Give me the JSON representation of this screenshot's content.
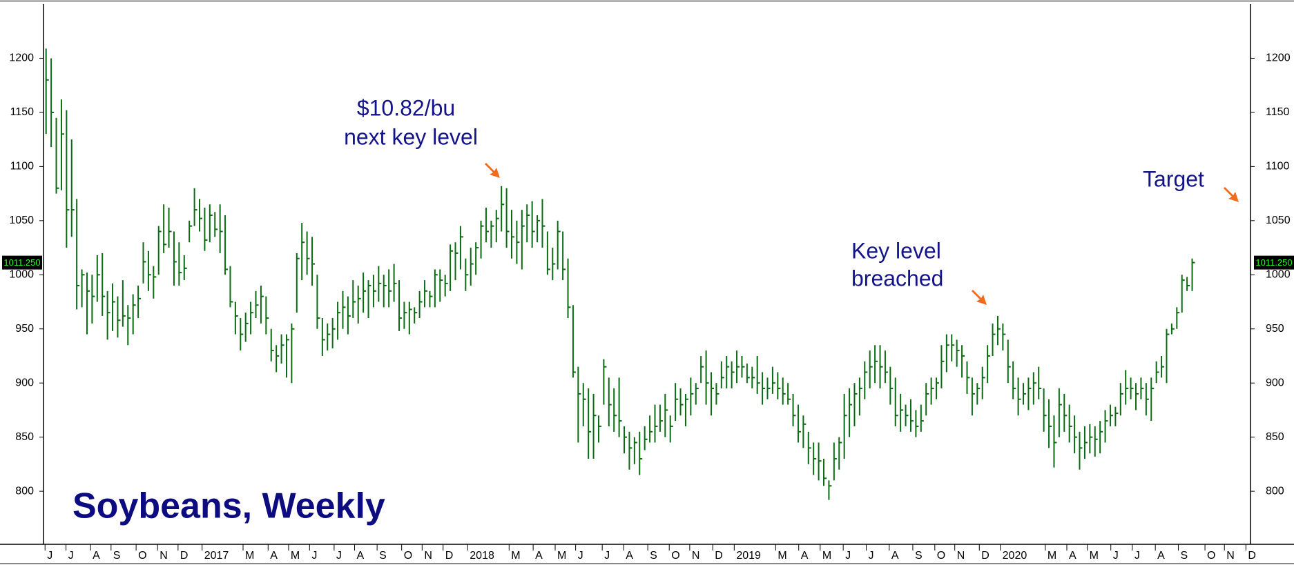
{
  "chart_data": {
    "type": "ohlc",
    "title": "Soybeans, Weekly",
    "color": "#0b6b12",
    "annotations": [
      "$10.82/bu",
      "next key level",
      "Key level",
      "breached",
      "Target"
    ],
    "last_value": {
      "value": 1011.25,
      "label": "1011.250"
    },
    "ylim": [
      751,
      1250
    ],
    "yticks": [
      800,
      850,
      900,
      950,
      1000,
      1050,
      1100,
      1150,
      1200
    ],
    "xlim": [
      -0.5,
      235.4
    ],
    "xticks": [
      {
        "value": -0.2,
        "label": "J"
      },
      {
        "value": 3.9,
        "label": "J"
      },
      {
        "value": 8.7,
        "label": "A"
      },
      {
        "value": 12.7,
        "label": "S"
      },
      {
        "value": 17.6,
        "label": "O"
      },
      {
        "value": 21.8,
        "label": "N"
      },
      {
        "value": 25.8,
        "label": "D"
      },
      {
        "value": 30.5,
        "label": "2017"
      },
      {
        "value": 38.5,
        "label": "M"
      },
      {
        "value": 43.4,
        "label": "A"
      },
      {
        "value": 47.4,
        "label": "M"
      },
      {
        "value": 51.5,
        "label": "J"
      },
      {
        "value": 56.3,
        "label": "J"
      },
      {
        "value": 60.3,
        "label": "A"
      },
      {
        "value": 64.7,
        "label": "S"
      },
      {
        "value": 69.5,
        "label": "O"
      },
      {
        "value": 73.5,
        "label": "N"
      },
      {
        "value": 77.6,
        "label": "D"
      },
      {
        "value": 82.4,
        "label": "2018"
      },
      {
        "value": 90.5,
        "label": "M"
      },
      {
        "value": 95.2,
        "label": "A"
      },
      {
        "value": 99.5,
        "label": "M"
      },
      {
        "value": 103.5,
        "label": "J"
      },
      {
        "value": 108.7,
        "label": "J"
      },
      {
        "value": 112.9,
        "label": "A"
      },
      {
        "value": 117.6,
        "label": "S"
      },
      {
        "value": 121.8,
        "label": "O"
      },
      {
        "value": 125.8,
        "label": "N"
      },
      {
        "value": 130.3,
        "label": "D"
      },
      {
        "value": 134.5,
        "label": "2019"
      },
      {
        "value": 142.6,
        "label": "M"
      },
      {
        "value": 147.1,
        "label": "A"
      },
      {
        "value": 151.3,
        "label": "M"
      },
      {
        "value": 155.8,
        "label": "J"
      },
      {
        "value": 160.3,
        "label": "J"
      },
      {
        "value": 164.8,
        "label": "A"
      },
      {
        "value": 169.4,
        "label": "S"
      },
      {
        "value": 173.7,
        "label": "O"
      },
      {
        "value": 177.6,
        "label": "N"
      },
      {
        "value": 182.4,
        "label": "D"
      },
      {
        "value": 186.5,
        "label": "2020"
      },
      {
        "value": 195.3,
        "label": "M"
      },
      {
        "value": 199.5,
        "label": "A"
      },
      {
        "value": 203.5,
        "label": "M"
      },
      {
        "value": 208.1,
        "label": "J"
      },
      {
        "value": 212.3,
        "label": "J"
      },
      {
        "value": 216.8,
        "label": "A"
      },
      {
        "value": 221.3,
        "label": "S"
      },
      {
        "value": 226.5,
        "label": "O"
      },
      {
        "value": 230.3,
        "label": "N"
      },
      {
        "value": 234.5,
        "label": "D"
      }
    ],
    "high": [
      1209,
      1200,
      1145,
      1162,
      1152,
      1125,
      1070,
      1005,
      1002,
      1000,
      1018,
      1020,
      985,
      992,
      980,
      995,
      972,
      982,
      990,
      1030,
      1022,
      1008,
      1045,
      1065,
      1062,
      1040,
      1030,
      1018,
      1050,
      1080,
      1070,
      1062,
      1065,
      1058,
      1065,
      1055,
      1008,
      975,
      960,
      965,
      975,
      985,
      990,
      980,
      950,
      935,
      945,
      945,
      955,
      1020,
      1048,
      1040,
      1035,
      1000,
      960,
      955,
      960,
      975,
      985,
      980,
      995,
      990,
      1002,
      995,
      1000,
      1008,
      1000,
      1005,
      1010,
      995,
      975,
      975,
      970,
      985,
      995,
      985,
      1005,
      1005,
      1000,
      1028,
      1030,
      1045,
      1015,
      1025,
      1030,
      1050,
      1062,
      1050,
      1060,
      1082,
      1080,
      1060,
      1050,
      1060,
      1065,
      1068,
      1055,
      1070,
      1040,
      1025,
      1050,
      1040,
      1015,
      972,
      915,
      900,
      895,
      890,
      870,
      922,
      905,
      895,
      905,
      860,
      855,
      850,
      855,
      860,
      870,
      880,
      880,
      890,
      870,
      900,
      895,
      890,
      905,
      900,
      925,
      930,
      910,
      900,
      920,
      925,
      920,
      930,
      925,
      918,
      915,
      925,
      910,
      905,
      915,
      910,
      905,
      900,
      890,
      880,
      870,
      855,
      845,
      845,
      830,
      810,
      845,
      850,
      890,
      895,
      900,
      905,
      920,
      930,
      935,
      935,
      930,
      915,
      905,
      890,
      880,
      885,
      875,
      880,
      900,
      905,
      905,
      935,
      945,
      945,
      940,
      935,
      920,
      905,
      900,
      915,
      935,
      955,
      962,
      955,
      940,
      920,
      905,
      900,
      905,
      910,
      915,
      895,
      885,
      870,
      895,
      890,
      880,
      870,
      855,
      860,
      862,
      860,
      865,
      875,
      880,
      878,
      900,
      912,
      905,
      900,
      905,
      900,
      905,
      920,
      925,
      950,
      955,
      970,
      1000,
      998,
      1015
    ],
    "low": [
      1130,
      1118,
      1075,
      1078,
      1025,
      1035,
      968,
      970,
      945,
      955,
      975,
      962,
      940,
      948,
      942,
      952,
      935,
      945,
      960,
      992,
      985,
      978,
      1000,
      1020,
      1025,
      990,
      990,
      995,
      1030,
      1045,
      1040,
      1022,
      1030,
      1035,
      1020,
      1000,
      970,
      945,
      930,
      938,
      945,
      960,
      955,
      945,
      920,
      910,
      918,
      905,
      900,
      965,
      995,
      1000,
      990,
      950,
      925,
      930,
      932,
      940,
      950,
      945,
      960,
      955,
      965,
      960,
      970,
      975,
      970,
      970,
      975,
      948,
      950,
      945,
      955,
      960,
      970,
      970,
      970,
      975,
      980,
      985,
      995,
      1005,
      985,
      990,
      1000,
      1015,
      1030,
      1025,
      1030,
      1040,
      1025,
      1015,
      1010,
      1005,
      1030,
      1025,
      1030,
      1025,
      1000,
      995,
      1005,
      995,
      960,
      905,
      845,
      860,
      830,
      830,
      845,
      880,
      860,
      855,
      850,
      835,
      820,
      825,
      815,
      838,
      845,
      845,
      855,
      850,
      845,
      865,
      870,
      860,
      870,
      880,
      900,
      880,
      870,
      880,
      895,
      895,
      895,
      900,
      905,
      900,
      895,
      890,
      880,
      885,
      890,
      885,
      880,
      880,
      860,
      845,
      840,
      825,
      815,
      810,
      805,
      792,
      810,
      820,
      830,
      850,
      860,
      870,
      885,
      895,
      900,
      895,
      900,
      880,
      860,
      855,
      860,
      855,
      850,
      855,
      870,
      880,
      885,
      895,
      910,
      920,
      915,
      905,
      890,
      870,
      880,
      885,
      900,
      925,
      935,
      930,
      900,
      885,
      870,
      880,
      875,
      880,
      885,
      855,
      840,
      822,
      850,
      855,
      845,
      835,
      820,
      830,
      835,
      832,
      835,
      845,
      860,
      860,
      870,
      880,
      885,
      875,
      885,
      870,
      865,
      900,
      905,
      900,
      945,
      950,
      965,
      985,
      985
    ],
    "close": [
      1180,
      1150,
      1080,
      1130,
      1060,
      1060,
      990,
      1000,
      985,
      980,
      1000,
      980,
      965,
      975,
      958,
      962,
      960,
      972,
      978,
      1012,
      1000,
      998,
      1040,
      1028,
      1040,
      1012,
      1002,
      1006,
      1045,
      1060,
      1052,
      1032,
      1055,
      1042,
      1040,
      1005,
      975,
      962,
      945,
      955,
      965,
      972,
      980,
      960,
      930,
      925,
      935,
      940,
      950,
      1015,
      1030,
      1015,
      1010,
      960,
      940,
      945,
      950,
      965,
      970,
      962,
      975,
      978,
      985,
      990,
      985,
      992,
      990,
      985,
      992,
      960,
      965,
      968,
      965,
      975,
      985,
      980,
      1000,
      995,
      992,
      1022,
      1020,
      1035,
      1000,
      1010,
      1025,
      1045,
      1040,
      1045,
      1052,
      1065,
      1040,
      1035,
      1030,
      1045,
      1055,
      1040,
      1050,
      1045,
      1005,
      1010,
      1040,
      1005,
      970,
      910,
      890,
      885,
      855,
      870,
      860,
      915,
      880,
      870,
      865,
      850,
      840,
      845,
      830,
      848,
      855,
      860,
      865,
      875,
      860,
      885,
      880,
      885,
      890,
      895,
      915,
      900,
      895,
      890,
      905,
      915,
      910,
      915,
      915,
      905,
      905,
      900,
      895,
      895,
      900,
      895,
      890,
      885,
      870,
      855,
      862,
      840,
      830,
      828,
      812,
      805,
      830,
      845,
      870,
      880,
      890,
      895,
      910,
      915,
      920,
      915,
      910,
      895,
      870,
      875,
      870,
      865,
      860,
      865,
      890,
      895,
      900,
      920,
      935,
      935,
      930,
      925,
      905,
      890,
      895,
      905,
      925,
      945,
      950,
      945,
      915,
      895,
      885,
      890,
      895,
      900,
      895,
      870,
      860,
      845,
      880,
      870,
      860,
      850,
      840,
      845,
      850,
      848,
      855,
      865,
      870,
      872,
      890,
      895,
      895,
      890,
      895,
      885,
      895,
      910,
      915,
      945,
      950,
      965,
      995,
      990,
      1011.25
    ]
  }
}
